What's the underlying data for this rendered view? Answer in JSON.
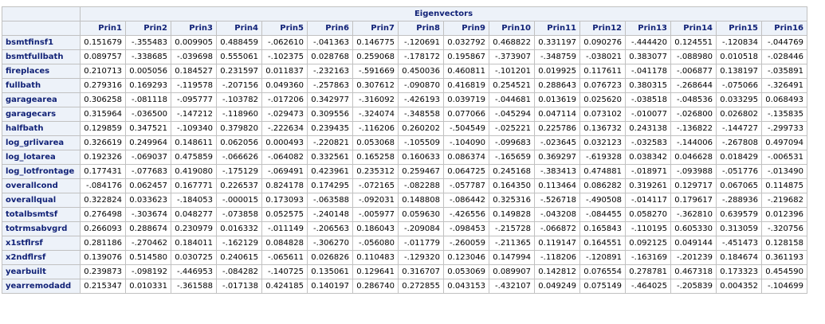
{
  "title": "Eigenvectors",
  "columns": [
    "Prin1",
    "Prin2",
    "Prin3",
    "Prin4",
    "Prin5",
    "Prin6",
    "Prin7",
    "Prin8",
    "Prin9",
    "Prin10",
    "Prin11",
    "Prin12",
    "Prin13",
    "Prin14",
    "Prin15",
    "Prin16"
  ],
  "rows": [
    {
      "name": "bsmtfinsf1",
      "values": [
        "0.151679",
        "-.355483",
        "0.009905",
        "0.488459",
        "-.062610",
        "-.041363",
        "0.146775",
        "-.120691",
        "0.032792",
        "0.468822",
        "0.331197",
        "0.090276",
        "-.444420",
        "0.124551",
        "-.120834",
        "-.044769"
      ]
    },
    {
      "name": "bsmtfullbath",
      "values": [
        "0.089757",
        "-.338685",
        "-.039698",
        "0.555061",
        "-.102375",
        "0.028768",
        "0.259068",
        "-.178172",
        "0.195867",
        "-.373907",
        "-.348759",
        "-.038021",
        "0.383077",
        "-.088980",
        "0.010518",
        "-.028446"
      ]
    },
    {
      "name": "fireplaces",
      "values": [
        "0.210713",
        "0.005056",
        "0.184527",
        "0.231597",
        "0.011837",
        "-.232163",
        "-.591669",
        "0.450036",
        "0.460811",
        "-.101201",
        "0.019925",
        "0.117611",
        "-.041178",
        "-.006877",
        "0.138197",
        "-.035891"
      ]
    },
    {
      "name": "fullbath",
      "values": [
        "0.279316",
        "0.169293",
        "-.119578",
        "-.207156",
        "0.049360",
        "-.257863",
        "0.307612",
        "-.090870",
        "0.416819",
        "0.254521",
        "0.288643",
        "0.076723",
        "0.380315",
        "-.268644",
        "-.075066",
        "-.326491"
      ]
    },
    {
      "name": "garagearea",
      "values": [
        "0.306258",
        "-.081118",
        "-.095777",
        "-.103782",
        "-.017206",
        "0.342977",
        "-.316092",
        "-.426193",
        "0.039719",
        "-.044681",
        "0.013619",
        "0.025620",
        "-.038518",
        "-.048536",
        "0.033295",
        "0.068493"
      ]
    },
    {
      "name": "garagecars",
      "values": [
        "0.315964",
        "-.036500",
        "-.147212",
        "-.118960",
        "-.029473",
        "0.309556",
        "-.324074",
        "-.348558",
        "0.077066",
        "-.045294",
        "0.047114",
        "0.073102",
        "-.010077",
        "-.026800",
        "0.026802",
        "-.135835"
      ]
    },
    {
      "name": "halfbath",
      "values": [
        "0.129859",
        "0.347521",
        "-.109340",
        "0.379820",
        "-.222634",
        "0.239435",
        "-.116206",
        "0.260202",
        "-.504549",
        "-.025221",
        "0.225786",
        "0.136732",
        "0.243138",
        "-.136822",
        "-.144727",
        "-.299733"
      ]
    },
    {
      "name": "log_grlivarea",
      "values": [
        "0.326619",
        "0.249964",
        "0.148611",
        "0.062056",
        "0.000493",
        "-.220821",
        "0.053068",
        "-.105509",
        "-.104090",
        "-.099683",
        "-.023645",
        "0.032123",
        "-.032583",
        "-.144006",
        "-.267808",
        "0.497094"
      ]
    },
    {
      "name": "log_lotarea",
      "values": [
        "0.192326",
        "-.069037",
        "0.475859",
        "-.066626",
        "-.064082",
        "0.332561",
        "0.165258",
        "0.160633",
        "0.086374",
        "-.165659",
        "0.369297",
        "-.619328",
        "0.038342",
        "0.046628",
        "0.018429",
        "-.006531"
      ]
    },
    {
      "name": "log_lotfrontage",
      "values": [
        "0.177431",
        "-.077683",
        "0.419080",
        "-.175129",
        "-.069491",
        "0.423961",
        "0.235312",
        "0.259467",
        "0.064725",
        "0.245168",
        "-.383413",
        "0.474881",
        "-.018971",
        "-.093988",
        "-.051776",
        "-.013490"
      ]
    },
    {
      "name": "overallcond",
      "values": [
        "-.084176",
        "0.062457",
        "0.167771",
        "0.226537",
        "0.824178",
        "0.174295",
        "-.072165",
        "-.082288",
        "-.057787",
        "0.164350",
        "0.113464",
        "0.086282",
        "0.319261",
        "0.129717",
        "0.067065",
        "0.114875"
      ]
    },
    {
      "name": "overallqual",
      "values": [
        "0.322824",
        "0.033623",
        "-.184053",
        "-.000015",
        "0.173093",
        "-.063588",
        "-.092031",
        "0.148808",
        "-.086442",
        "0.325316",
        "-.526718",
        "-.490508",
        "-.014117",
        "0.179617",
        "-.288936",
        "-.219682"
      ]
    },
    {
      "name": "totalbsmtsf",
      "values": [
        "0.276498",
        "-.303674",
        "0.048277",
        "-.073858",
        "0.052575",
        "-.240148",
        "-.005977",
        "0.059630",
        "-.426556",
        "0.149828",
        "-.043208",
        "-.084455",
        "0.058270",
        "-.362810",
        "0.639579",
        "0.012396"
      ]
    },
    {
      "name": "totrmsabvgrd",
      "values": [
        "0.266093",
        "0.288674",
        "0.230979",
        "0.016332",
        "-.011149",
        "-.206563",
        "0.186043",
        "-.209084",
        "-.098453",
        "-.215728",
        "-.066872",
        "0.165843",
        "-.110195",
        "0.605330",
        "0.313059",
        "-.320756"
      ]
    },
    {
      "name": "x1stflrsf",
      "values": [
        "0.281186",
        "-.270462",
        "0.184011",
        "-.162129",
        "0.084828",
        "-.306270",
        "-.056080",
        "-.011779",
        "-.260059",
        "-.211365",
        "0.119147",
        "0.164551",
        "0.092125",
        "0.049144",
        "-.451473",
        "0.128158"
      ]
    },
    {
      "name": "x2ndflrsf",
      "values": [
        "0.139076",
        "0.514580",
        "0.030725",
        "0.240615",
        "-.065611",
        "0.026826",
        "0.110483",
        "-.129320",
        "0.123046",
        "0.147994",
        "-.118206",
        "-.120891",
        "-.163169",
        "-.201239",
        "0.184674",
        "0.361193"
      ]
    },
    {
      "name": "yearbuilt",
      "values": [
        "0.239873",
        "-.098192",
        "-.446953",
        "-.084282",
        "-.140725",
        "0.135061",
        "0.129641",
        "0.316707",
        "0.053069",
        "0.089907",
        "0.142812",
        "0.076554",
        "0.278781",
        "0.467318",
        "0.173323",
        "0.454590"
      ]
    },
    {
      "name": "yearremodadd",
      "values": [
        "0.215347",
        "0.010331",
        "-.361588",
        "-.017138",
        "0.424185",
        "0.140197",
        "0.286740",
        "0.272855",
        "0.043153",
        "-.432107",
        "0.049249",
        "0.075149",
        "-.464025",
        "-.205839",
        "0.004352",
        "-.104699"
      ]
    }
  ]
}
